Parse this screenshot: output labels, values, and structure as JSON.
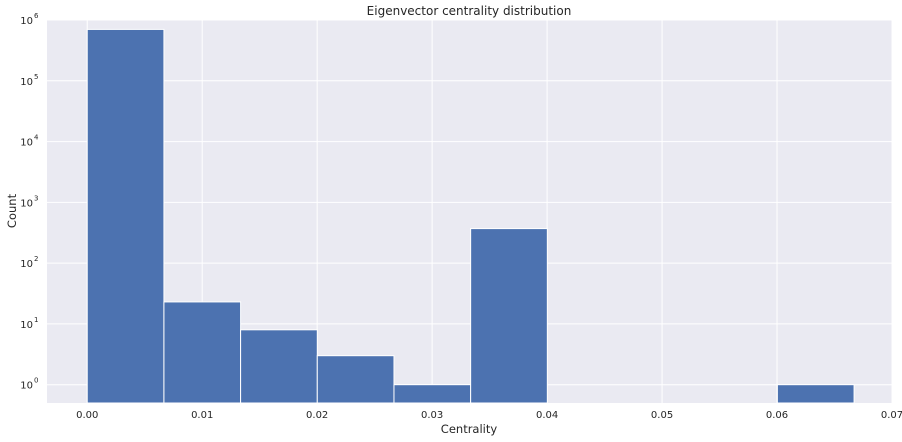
{
  "chart_data": {
    "type": "bar",
    "title": "Eigenvector centrality distribution",
    "xlabel": "Centrality",
    "ylabel": "Count",
    "y_scale": "log",
    "xlim": [
      -0.0035,
      0.07
    ],
    "ylim": [
      0.5,
      1000000
    ],
    "x_ticks": [
      "0.00",
      "0.01",
      "0.02",
      "0.03",
      "0.04",
      "0.05",
      "0.06",
      "0.07"
    ],
    "x_tick_values": [
      0.0,
      0.01,
      0.02,
      0.03,
      0.04,
      0.05,
      0.06,
      0.07
    ],
    "y_ticks": [
      {
        "value": 1,
        "base": "10",
        "exp": "0"
      },
      {
        "value": 10,
        "base": "10",
        "exp": "1"
      },
      {
        "value": 100,
        "base": "10",
        "exp": "2"
      },
      {
        "value": 1000,
        "base": "10",
        "exp": "3"
      },
      {
        "value": 10000,
        "base": "10",
        "exp": "4"
      },
      {
        "value": 100000,
        "base": "10",
        "exp": "5"
      },
      {
        "value": 1000000,
        "base": "10",
        "exp": "6"
      }
    ],
    "bin_edges": [
      0.0,
      0.00667,
      0.01334,
      0.02001,
      0.02668,
      0.03335,
      0.04002,
      0.04669,
      0.05336,
      0.06003,
      0.0667
    ],
    "values": [
      700000,
      23,
      8,
      3,
      1,
      370,
      0,
      0,
      0,
      1
    ],
    "grid": true,
    "colors": {
      "bar": "#4c72b0",
      "background": "#eaeaf2",
      "grid": "#ffffff"
    }
  }
}
